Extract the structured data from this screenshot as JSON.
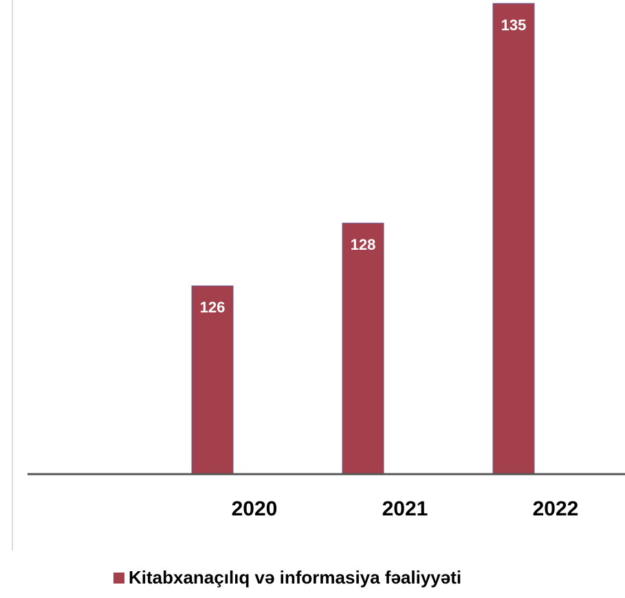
{
  "chart_data": {
    "type": "bar",
    "categories": [
      "2020",
      "2021",
      "2022"
    ],
    "series": [
      {
        "name": "Kitabxanaçılıq və informasiya fəaliyyəti",
        "color": "#a3404c",
        "values": [
          126,
          128,
          135
        ]
      }
    ],
    "ylim": [
      120,
      135
    ]
  }
}
